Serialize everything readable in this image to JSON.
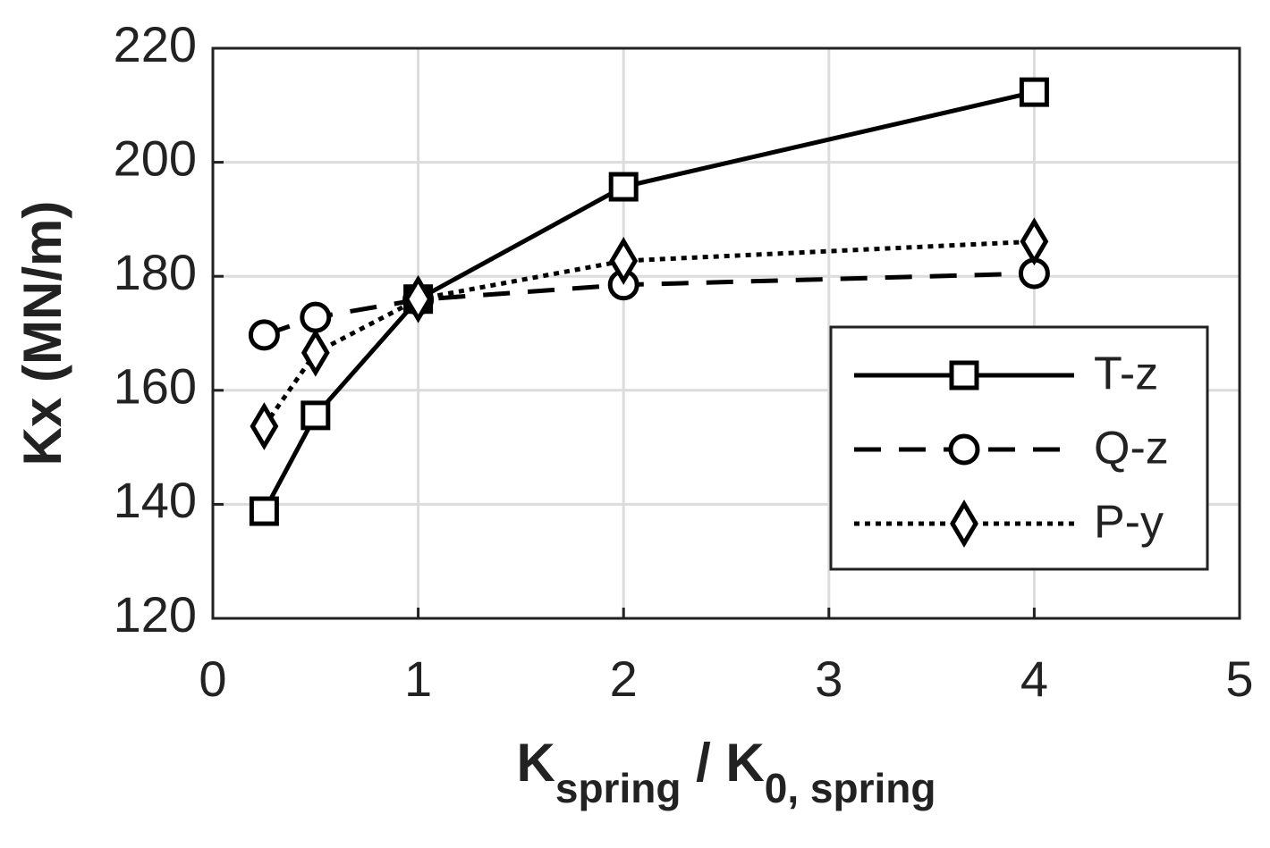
{
  "chart_data": {
    "type": "line",
    "y_label": "Kx (MN/m)",
    "x_label": {
      "main": "K",
      "sub": "spring",
      "main2": " / K",
      "sub2": "0, spring"
    },
    "xlim": [
      0,
      5
    ],
    "xticks": [
      0,
      1,
      2,
      3,
      4,
      5
    ],
    "ylim": [
      120,
      220
    ],
    "yticks": [
      120,
      140,
      160,
      180,
      200,
      220
    ],
    "grid": true,
    "legend": "lower right",
    "series": [
      {
        "name": "T-z",
        "color": "#000000",
        "marker": "square",
        "dash": "solid",
        "x": [
          0.25,
          0.5,
          1,
          2,
          4
        ],
        "values": [
          138.8,
          155.6,
          176,
          195.7,
          212.3
        ]
      },
      {
        "name": "Q-z",
        "color": "#000000",
        "marker": "circle",
        "dash": "dashed",
        "x": [
          0.25,
          0.5,
          1,
          2,
          4
        ],
        "values": [
          169.7,
          172.8,
          175.9,
          178.5,
          180.5
        ]
      },
      {
        "name": "P-y",
        "color": "#000000",
        "marker": "diamond",
        "dash": "dotted",
        "x": [
          0.25,
          0.5,
          1,
          2,
          4
        ],
        "values": [
          153.7,
          166.6,
          176,
          182.7,
          186.1
        ]
      }
    ]
  }
}
